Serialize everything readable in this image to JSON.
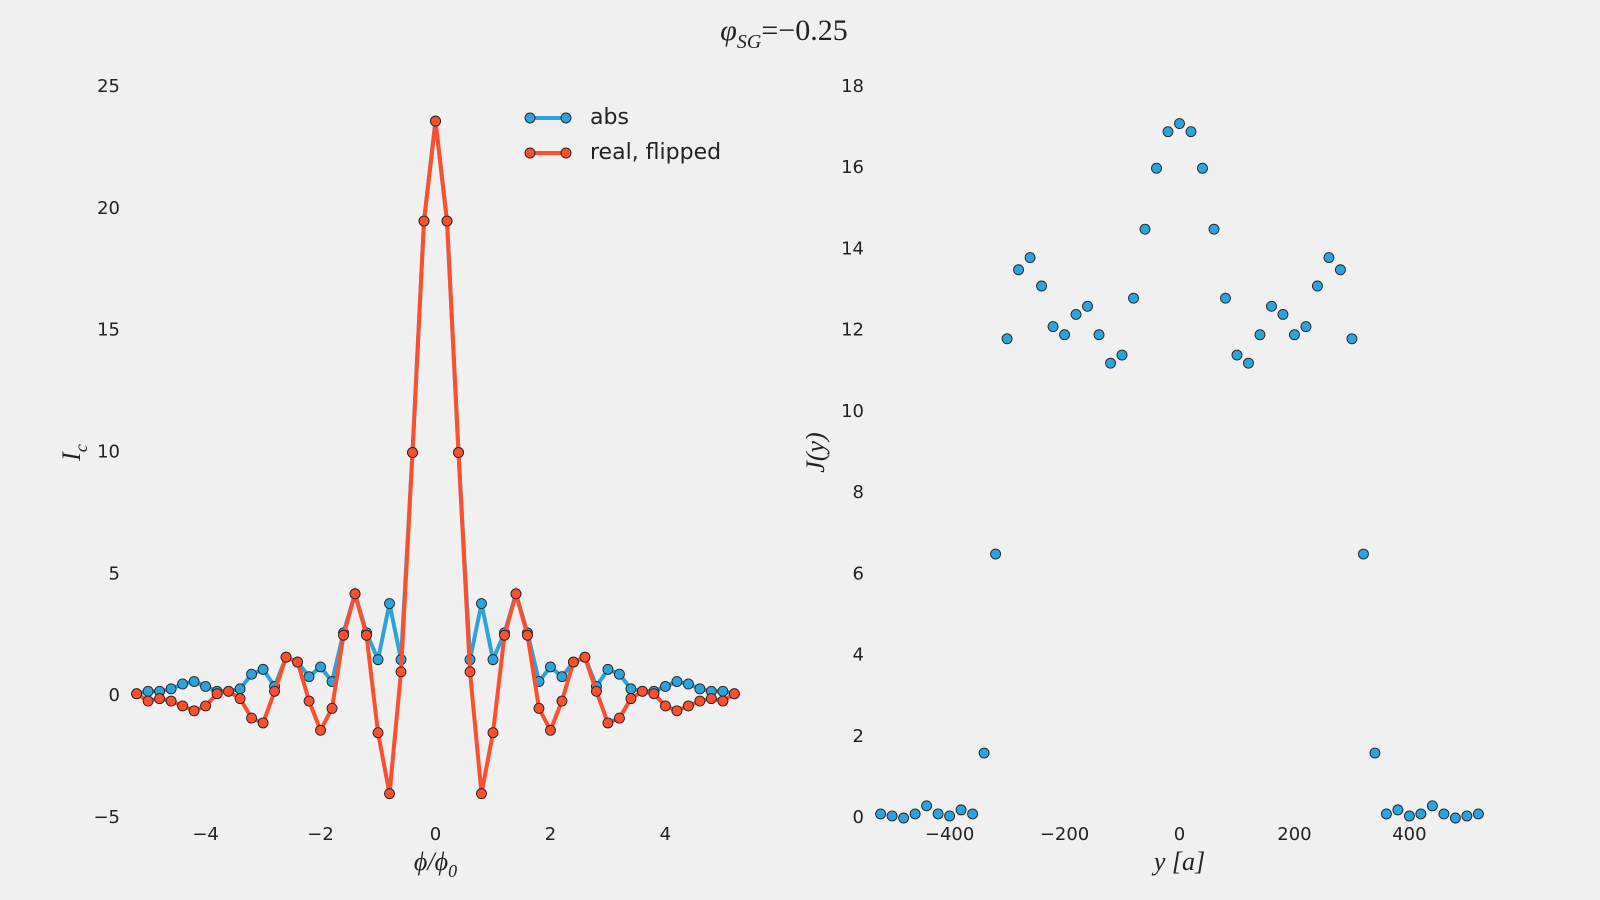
{
  "title": {
    "symbol": "φ",
    "subscript": "SG",
    "rest": "=−0.25"
  },
  "chart_data": [
    {
      "type": "line",
      "xlabel": {
        "main": "ϕ/ϕ",
        "sub": "0"
      },
      "ylabel": {
        "main": "I",
        "sub": "c"
      },
      "xlim": [
        -5.35,
        5.35
      ],
      "ylim": [
        -5,
        25
      ],
      "xticks": [
        {
          "value": -4,
          "label": "−4"
        },
        {
          "value": -2,
          "label": "−2"
        },
        0,
        2,
        4
      ],
      "yticks": [
        {
          "value": -5,
          "label": "−5"
        },
        0,
        5,
        10,
        15,
        20,
        25
      ],
      "grid": false,
      "legend": "upper right",
      "x": [
        -5.2,
        -5.0,
        -4.8,
        -4.6,
        -4.4,
        -4.2,
        -4.0,
        -3.8,
        -3.6,
        -3.4,
        -3.2,
        -3.0,
        -2.8,
        -2.6,
        -2.4,
        -2.2,
        -2.0,
        -1.8,
        -1.6,
        -1.4,
        -1.2,
        -1.0,
        -0.8,
        -0.6,
        -0.4,
        -0.2,
        0,
        0.2,
        0.4,
        0.6,
        0.8,
        1.0,
        1.2,
        1.4,
        1.6,
        1.8,
        2.0,
        2.2,
        2.4,
        2.6,
        2.8,
        3.0,
        3.2,
        3.4,
        3.6,
        3.8,
        4.0,
        4.2,
        4.4,
        4.6,
        4.8,
        5.0,
        5.2
      ],
      "series": [
        {
          "name": "abs",
          "color": "#30a2da",
          "values": [
            0.1,
            0.2,
            0.2,
            0.3,
            0.5,
            0.6,
            0.4,
            0.2,
            0.2,
            0.3,
            0.9,
            1.1,
            0.4,
            1.6,
            1.4,
            0.8,
            1.2,
            0.6,
            2.6,
            4.2,
            2.6,
            1.5,
            3.8,
            1.5,
            10,
            19.5,
            23.6,
            19.5,
            10,
            1.5,
            3.8,
            1.5,
            2.6,
            4.2,
            2.6,
            0.6,
            1.2,
            0.8,
            1.4,
            1.6,
            0.4,
            1.1,
            0.9,
            0.3,
            0.2,
            0.2,
            0.4,
            0.6,
            0.5,
            0.3,
            0.2,
            0.2,
            0.1
          ]
        },
        {
          "name": "real, flipped",
          "color": "#fc4f30",
          "values": [
            0.1,
            -0.2,
            -0.1,
            -0.2,
            -0.4,
            -0.6,
            -0.4,
            0.1,
            0.2,
            -0.1,
            -0.9,
            -1.1,
            0.2,
            1.6,
            1.4,
            -0.2,
            -1.4,
            -0.5,
            2.5,
            4.2,
            2.5,
            -1.5,
            -4,
            1,
            10,
            19.5,
            23.6,
            19.5,
            10,
            1,
            -4,
            -1.5,
            2.5,
            4.2,
            2.5,
            -0.5,
            -1.4,
            -0.2,
            1.4,
            1.6,
            0.2,
            -1.1,
            -0.9,
            -0.1,
            0.2,
            0.1,
            -0.4,
            -0.6,
            -0.4,
            -0.2,
            -0.1,
            -0.2,
            0.1
          ]
        }
      ]
    },
    {
      "type": "scatter",
      "xlabel": "y [a]",
      "ylabel": "J(y)",
      "xlim": [
        -535,
        535
      ],
      "ylim": [
        0,
        18
      ],
      "xticks": [
        {
          "value": -400,
          "label": "−400"
        },
        {
          "value": -200,
          "label": "−200"
        },
        0,
        200,
        400
      ],
      "yticks": [
        0,
        2,
        4,
        6,
        8,
        10,
        12,
        14,
        16,
        18
      ],
      "grid": false,
      "x": [
        -520,
        -500,
        -480,
        -460,
        -440,
        -420,
        -400,
        -380,
        -360,
        -340,
        -320,
        -300,
        -280,
        -260,
        -240,
        -220,
        -200,
        -180,
        -160,
        -140,
        -120,
        -100,
        -80,
        -60,
        -40,
        -20,
        0,
        20,
        40,
        60,
        80,
        100,
        120,
        140,
        160,
        180,
        200,
        220,
        240,
        260,
        280,
        300,
        320,
        340,
        360,
        380,
        400,
        420,
        440,
        460,
        480,
        500,
        520
      ],
      "series": [
        {
          "color": "#30a2da",
          "values": [
            0.1,
            0.05,
            0,
            0.1,
            0.3,
            0.1,
            0.05,
            0.2,
            0.1,
            1.6,
            6.5,
            11.8,
            13.5,
            13.8,
            13.1,
            12.1,
            11.9,
            12.4,
            12.6,
            11.9,
            11.2,
            11.4,
            12.8,
            14.5,
            16.0,
            16.9,
            17.1,
            16.9,
            16.0,
            14.5,
            12.8,
            11.4,
            11.2,
            11.9,
            12.6,
            12.4,
            11.9,
            12.1,
            13.1,
            13.8,
            13.5,
            11.8,
            6.5,
            1.6,
            0.1,
            0.2,
            0.05,
            0.1,
            0.3,
            0.1,
            0,
            0.05,
            0.1
          ]
        }
      ]
    }
  ]
}
